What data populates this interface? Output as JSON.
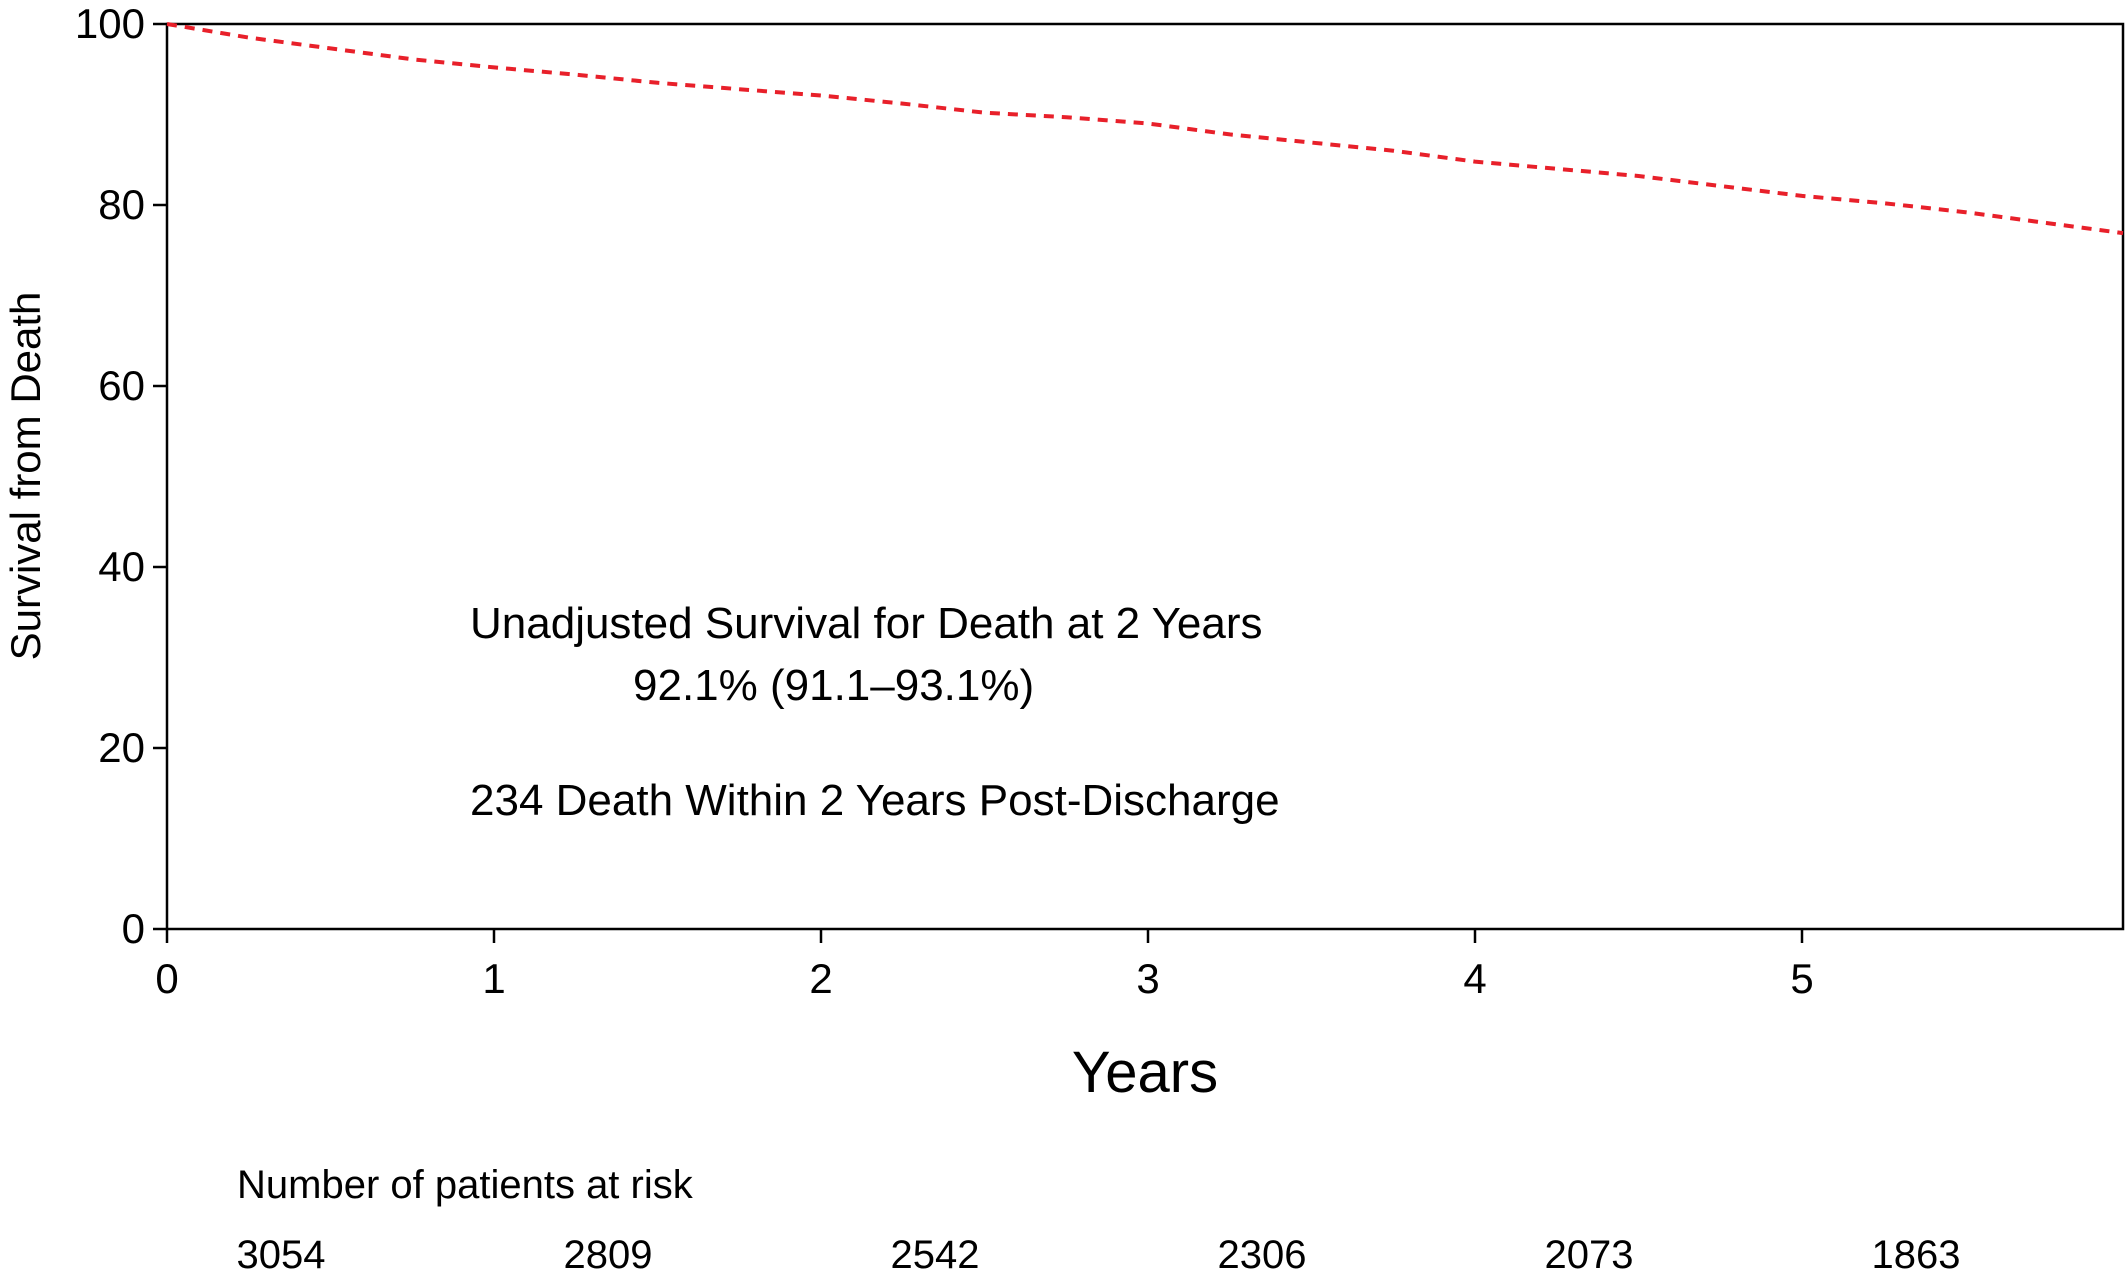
{
  "chart_data": {
    "type": "line",
    "title": "",
    "xlabel": "Years",
    "ylabel": "Survival from Death",
    "xlim": [
      0,
      6
    ],
    "ylim": [
      0,
      100
    ],
    "x_ticks": [
      0,
      1,
      2,
      3,
      4,
      5
    ],
    "y_ticks": [
      0,
      20,
      40,
      60,
      80,
      100
    ],
    "grid": false,
    "series": [
      {
        "color": "#e8202a",
        "style": "dashed",
        "x": [
          0,
          0.25,
          0.5,
          0.75,
          1,
          1.25,
          1.5,
          1.75,
          2,
          2.25,
          2.5,
          2.75,
          3,
          3.25,
          3.5,
          3.75,
          4,
          4.25,
          4.5,
          4.75,
          5,
          5.25,
          5.5,
          5.75,
          6
        ],
        "y": [
          100,
          98.5,
          97.3,
          96.1,
          95.2,
          94.4,
          93.5,
          92.8,
          92.1,
          91.2,
          90.2,
          89.7,
          89.0,
          87.8,
          86.9,
          86.0,
          84.8,
          84.0,
          83.2,
          82.1,
          81.0,
          80.2,
          79.2,
          78.0,
          76.9
        ]
      }
    ],
    "annotations": [
      {
        "text": "Unadjusted Survival for Death at 2 Years"
      },
      {
        "text": "92.1% (91.1–93.1%)"
      },
      {
        "text": "234 Death Within 2 Years Post-Discharge"
      }
    ],
    "risk_table": {
      "title": "Number of patients at risk",
      "x": [
        0,
        1,
        2,
        3,
        4,
        5
      ],
      "values": [
        "3054",
        "2809",
        "2542",
        "2306",
        "2073",
        "1863"
      ]
    }
  }
}
